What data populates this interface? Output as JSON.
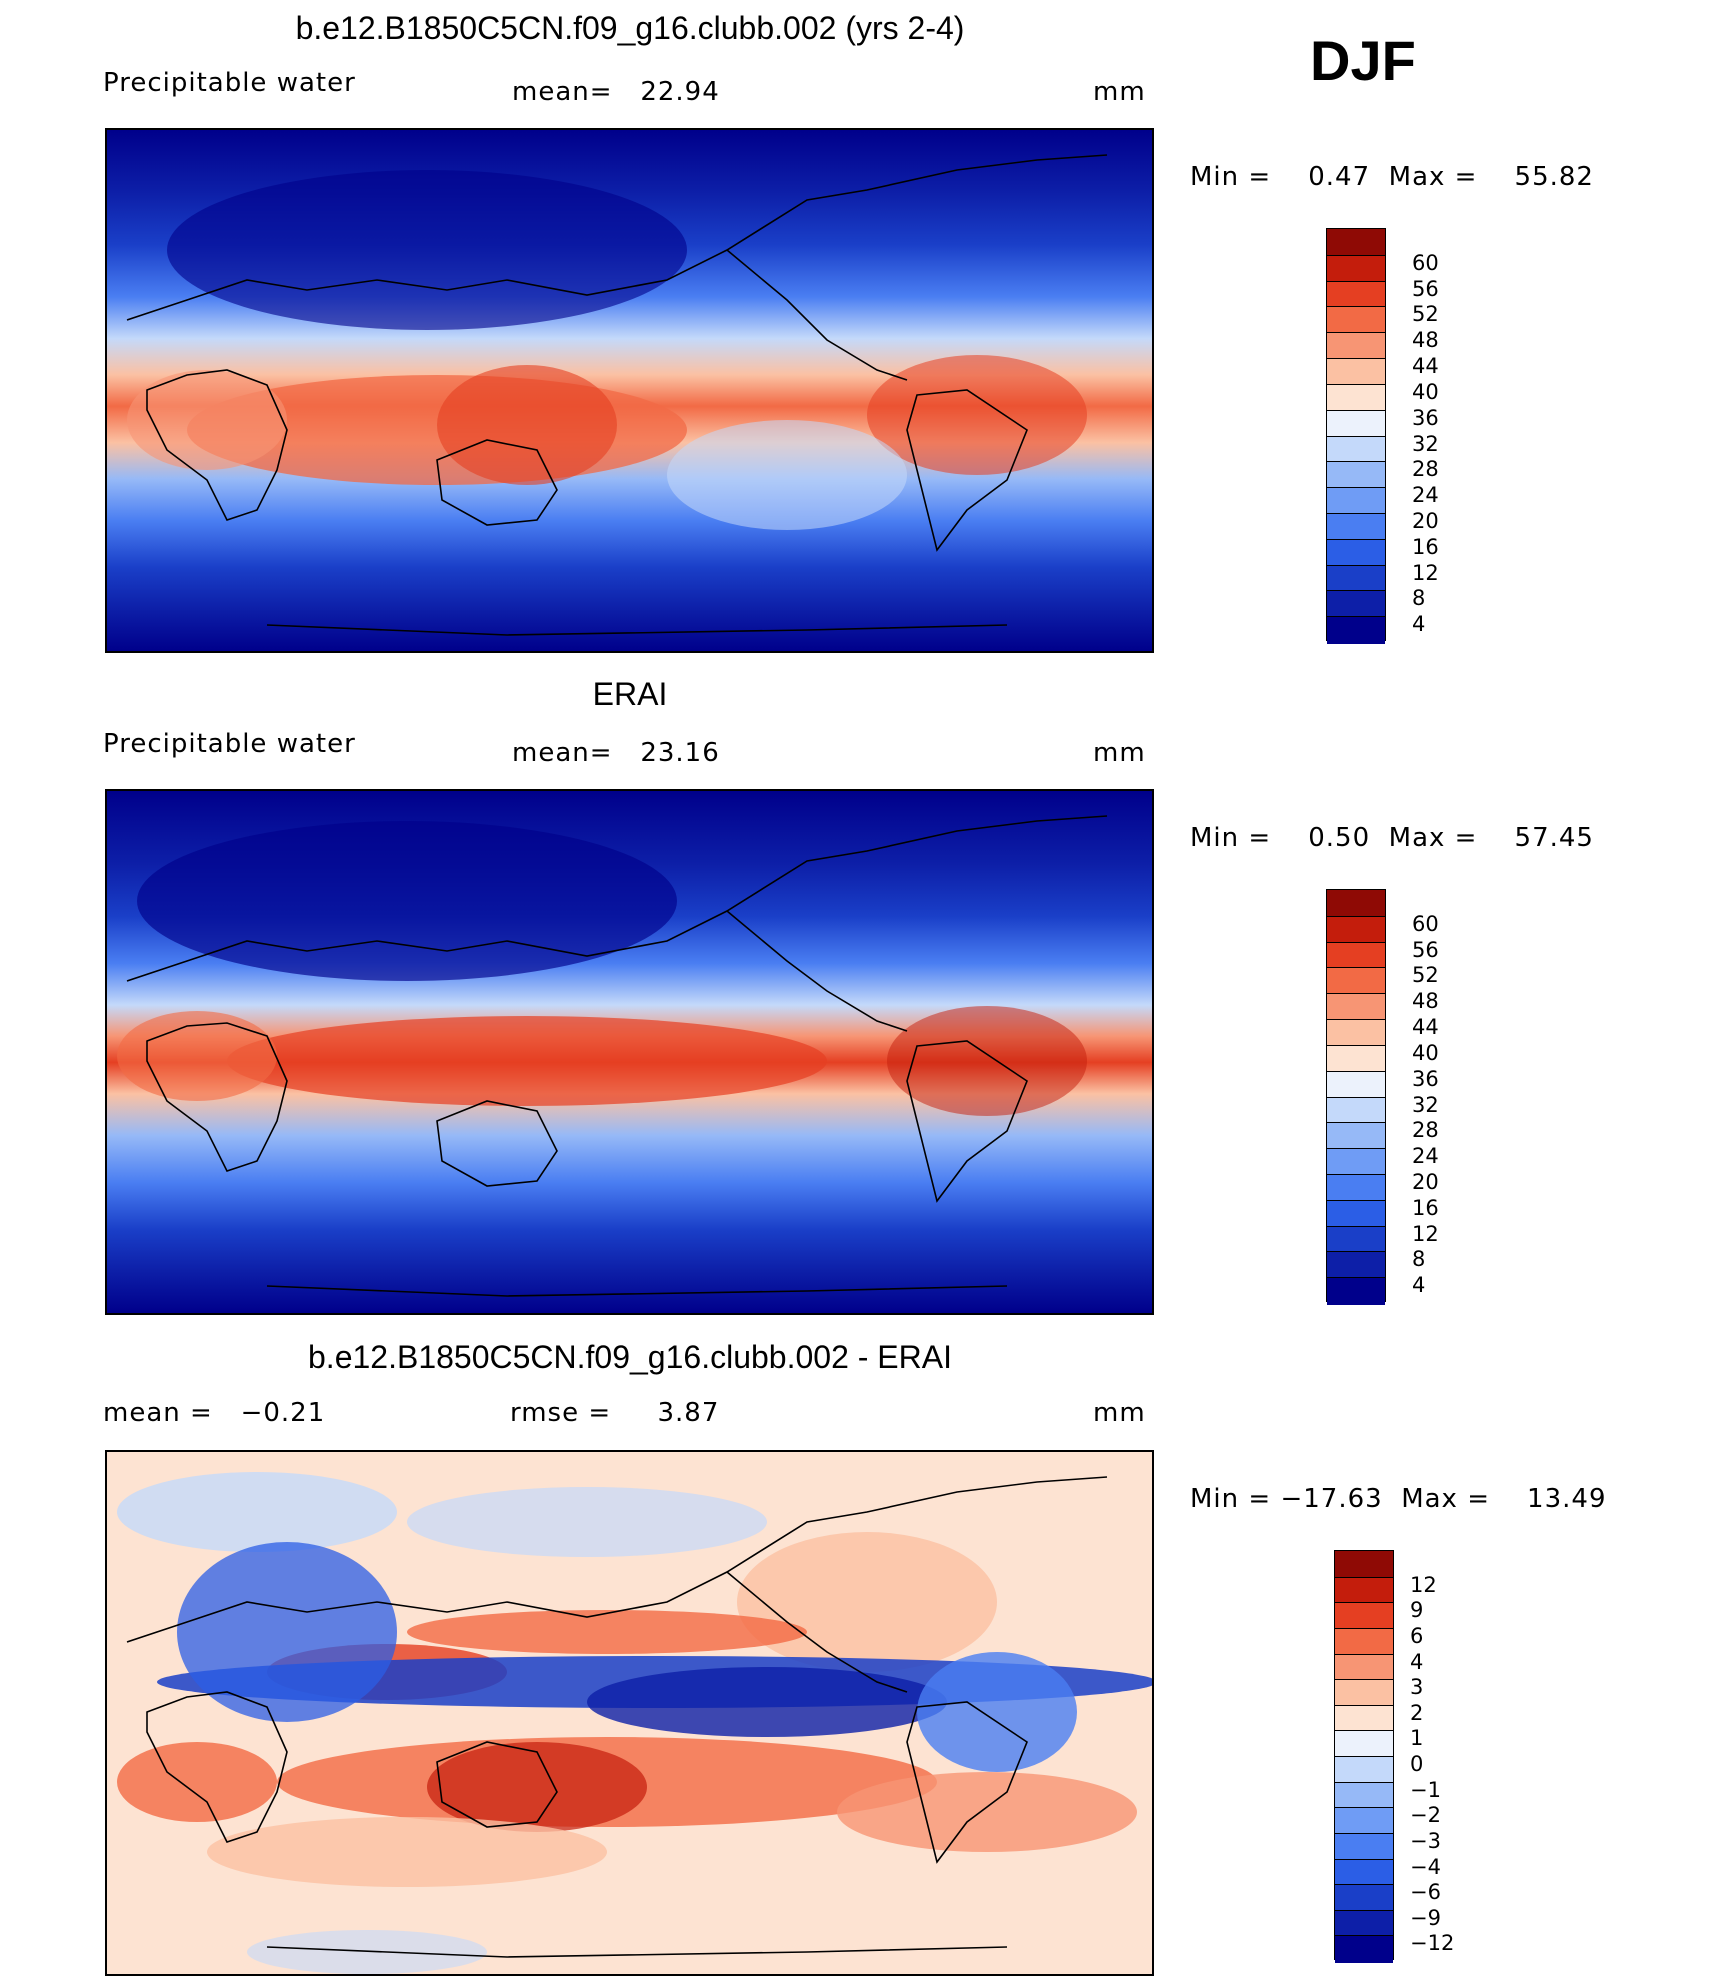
{
  "season": "DJF",
  "chart_data": [
    {
      "type": "heatmap",
      "title": "b.e12.B1850C5CN.f09_g16.clubb.002 (yrs 2-4)",
      "variable": "Precipitable water",
      "stat_left": "",
      "stat_mid": "mean=   22.94",
      "units": "mm",
      "min": 0.47,
      "max": 55.82,
      "minmax_text": "Min =    0.47  Max =    55.82",
      "levels": [
        "4",
        "8",
        "12",
        "16",
        "20",
        "24",
        "28",
        "32",
        "36",
        "40",
        "44",
        "48",
        "52",
        "56",
        "60"
      ],
      "colors": [
        "#00008b",
        "#0d1fa8",
        "#1a3fc8",
        "#2b5ee6",
        "#4a7ef2",
        "#6f9cf5",
        "#96b9f7",
        "#c4d9fa",
        "#ecf2fc",
        "#fde3d2",
        "#fbc1a3",
        "#f79574",
        "#f26a45",
        "#e53f22",
        "#c41d0c",
        "#8f0a05"
      ],
      "grid": false
    },
    {
      "type": "heatmap",
      "title": "ERAI",
      "variable": "Precipitable water",
      "stat_left": "",
      "stat_mid": "mean=   23.16",
      "units": "mm",
      "min": 0.5,
      "max": 57.45,
      "minmax_text": "Min =    0.50  Max =    57.45",
      "levels": [
        "4",
        "8",
        "12",
        "16",
        "20",
        "24",
        "28",
        "32",
        "36",
        "40",
        "44",
        "48",
        "52",
        "56",
        "60"
      ],
      "colors": [
        "#00008b",
        "#0d1fa8",
        "#1a3fc8",
        "#2b5ee6",
        "#4a7ef2",
        "#6f9cf5",
        "#96b9f7",
        "#c4d9fa",
        "#ecf2fc",
        "#fde3d2",
        "#fbc1a3",
        "#f79574",
        "#f26a45",
        "#e53f22",
        "#c41d0c",
        "#8f0a05"
      ],
      "grid": false
    },
    {
      "type": "heatmap",
      "title": "b.e12.B1850C5CN.f09_g16.clubb.002 - ERAI",
      "variable": "",
      "stat_left": "mean =   −0.21",
      "stat_mid": "rmse =     3.87",
      "units": "mm",
      "min": -17.63,
      "max": 13.49,
      "minmax_text": "Min = −17.63  Max =    13.49",
      "levels": [
        "−12",
        "−9",
        "−6",
        "−4",
        "−3",
        "−2",
        "−1",
        "0",
        "1",
        "2",
        "3",
        "4",
        "6",
        "9",
        "12"
      ],
      "colors": [
        "#00008b",
        "#0d1fa8",
        "#1a3fc8",
        "#2b5ee6",
        "#4a7ef2",
        "#6f9cf5",
        "#96b9f7",
        "#c4d9fa",
        "#ecf2fc",
        "#fde3d2",
        "#fbc1a3",
        "#f79574",
        "#f26a45",
        "#e53f22",
        "#c41d0c",
        "#8f0a05"
      ],
      "grid": false
    }
  ]
}
